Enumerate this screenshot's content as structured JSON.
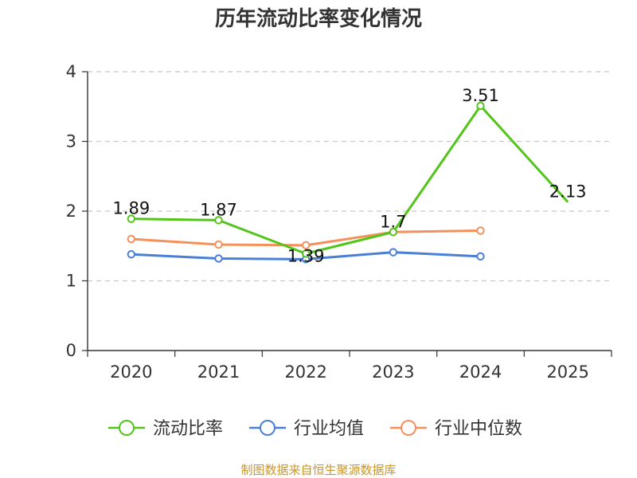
{
  "chart_data": {
    "type": "line",
    "title": "历年流动比率变化情况",
    "categories": [
      "2020",
      "2021",
      "2022",
      "2023",
      "2024",
      "2025"
    ],
    "ylim": [
      0,
      4
    ],
    "yticks": [
      0,
      1,
      2,
      3,
      4
    ],
    "grid": true,
    "legend_position": "bottom",
    "series": [
      {
        "name": "流动比率",
        "color": "#52c41a",
        "values": [
          1.89,
          1.87,
          1.39,
          1.7,
          3.51,
          2.13
        ],
        "labels": [
          "1.89",
          "1.87",
          "1.39",
          "1.7",
          "3.51",
          "2.13"
        ]
      },
      {
        "name": "行业均值",
        "color": "#4a7fd6",
        "values": [
          1.38,
          1.32,
          1.31,
          1.41,
          1.35,
          null
        ]
      },
      {
        "name": "行业中位数",
        "color": "#f5905a",
        "values": [
          1.6,
          1.52,
          1.51,
          1.7,
          1.72,
          null
        ]
      }
    ],
    "source": "制图数据来自恒生聚源数据库"
  }
}
